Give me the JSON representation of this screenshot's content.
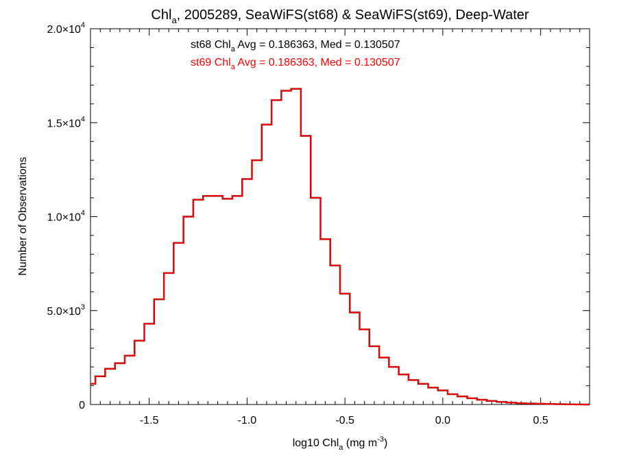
{
  "chart_data": {
    "type": "histogram",
    "title": {
      "base": "Chl",
      "sub": "a",
      "rest": ", 2005289, SeaWiFS(st68) & SeaWiFS(st69), Deep-Water"
    },
    "xlabel": {
      "base": "log10 Chl",
      "sub": "a",
      "rest": " (mg m",
      "sup": "-3",
      "end": ")"
    },
    "ylabel": "Number of Observations",
    "xlim": [
      -1.8,
      0.75
    ],
    "ylim": [
      0,
      20000
    ],
    "x_ticks": [
      {
        "value": -1.5,
        "label": "-1.5"
      },
      {
        "value": -1.0,
        "label": "-1.0"
      },
      {
        "value": -0.5,
        "label": "-0.5"
      },
      {
        "value": 0.0,
        "label": "0.0"
      },
      {
        "value": 0.5,
        "label": "0.5"
      }
    ],
    "y_ticks": [
      {
        "value": 0,
        "mant": "0",
        "exp": ""
      },
      {
        "value": 5000,
        "mant": "5.0×10",
        "exp": "3"
      },
      {
        "value": 10000,
        "mant": "1.0×10",
        "exp": "4"
      },
      {
        "value": 15000,
        "mant": "1.5×10",
        "exp": "4"
      },
      {
        "value": 20000,
        "mant": "2.0×10",
        "exp": "4"
      }
    ],
    "annotations": [
      {
        "series": "st68",
        "color": "#000000",
        "base": "st68 Chl",
        "sub": "a",
        "rest": " Avg = 0.186363, Med = 0.130507"
      },
      {
        "series": "st69",
        "color": "#ff0000",
        "base": "st69 Chl",
        "sub": "a",
        "rest": " Avg = 0.186363, Med = 0.130507"
      }
    ],
    "series": [
      {
        "name": "st68",
        "color": "#000000",
        "x": [
          -1.8,
          -1.75,
          -1.7,
          -1.65,
          -1.6,
          -1.55,
          -1.5,
          -1.45,
          -1.4,
          -1.35,
          -1.3,
          -1.25,
          -1.2,
          -1.15,
          -1.1,
          -1.05,
          -1.0,
          -0.95,
          -0.9,
          -0.85,
          -0.8,
          -0.75,
          -0.7,
          -0.65,
          -0.6,
          -0.55,
          -0.5,
          -0.45,
          -0.4,
          -0.35,
          -0.3,
          -0.25,
          -0.2,
          -0.15,
          -0.1,
          -0.05,
          0.0,
          0.05,
          0.1,
          0.15,
          0.2,
          0.25,
          0.3,
          0.35,
          0.4,
          0.45,
          0.5,
          0.55,
          0.6,
          0.65,
          0.7,
          0.75
        ],
        "y": [
          1100,
          1500,
          1900,
          2200,
          2600,
          3400,
          4300,
          5600,
          7000,
          8600,
          10000,
          10900,
          11100,
          11100,
          10950,
          11100,
          12000,
          13000,
          14900,
          16200,
          16700,
          16800,
          14300,
          11000,
          8800,
          7400,
          5900,
          4900,
          4000,
          3100,
          2500,
          2000,
          1600,
          1300,
          1100,
          900,
          750,
          550,
          430,
          330,
          250,
          190,
          140,
          100,
          70,
          50,
          40,
          30,
          20,
          10,
          5,
          0
        ]
      },
      {
        "name": "st69",
        "color": "#ff0000",
        "x": [
          -1.8,
          -1.75,
          -1.7,
          -1.65,
          -1.6,
          -1.55,
          -1.5,
          -1.45,
          -1.4,
          -1.35,
          -1.3,
          -1.25,
          -1.2,
          -1.15,
          -1.1,
          -1.05,
          -1.0,
          -0.95,
          -0.9,
          -0.85,
          -0.8,
          -0.75,
          -0.7,
          -0.65,
          -0.6,
          -0.55,
          -0.5,
          -0.45,
          -0.4,
          -0.35,
          -0.3,
          -0.25,
          -0.2,
          -0.15,
          -0.1,
          -0.05,
          0.0,
          0.05,
          0.1,
          0.15,
          0.2,
          0.25,
          0.3,
          0.35,
          0.4,
          0.45,
          0.5,
          0.55,
          0.6,
          0.65,
          0.7,
          0.75
        ],
        "y": [
          1100,
          1500,
          1900,
          2200,
          2600,
          3400,
          4300,
          5600,
          7000,
          8600,
          10000,
          10900,
          11100,
          11100,
          10950,
          11100,
          12000,
          13000,
          14900,
          16200,
          16700,
          16800,
          14300,
          11000,
          8800,
          7400,
          5900,
          4900,
          4000,
          3100,
          2500,
          2000,
          1600,
          1300,
          1100,
          900,
          750,
          550,
          430,
          330,
          250,
          190,
          140,
          100,
          70,
          50,
          40,
          30,
          20,
          10,
          5,
          0
        ]
      }
    ]
  }
}
